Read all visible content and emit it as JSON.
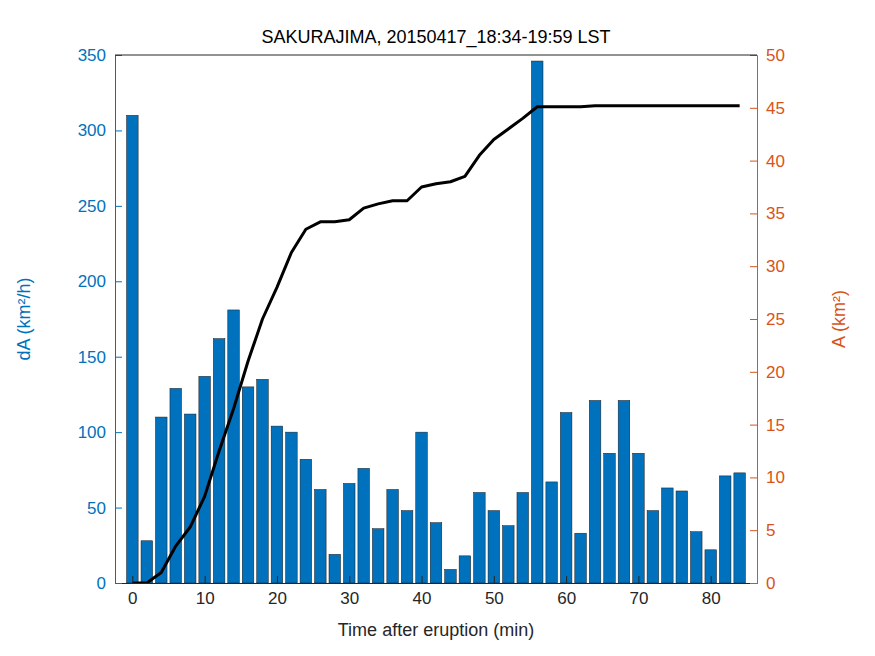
{
  "chart_data": {
    "type": "bar",
    "title": "SAKURAJIMA, 20150417_18:34-19:59 LST",
    "xlabel": "Time after eruption (min)",
    "ylabel": "dA (km²/h)",
    "y2label": "A (km²)",
    "x": [
      0,
      2,
      4,
      6,
      8,
      10,
      12,
      14,
      16,
      18,
      20,
      22,
      24,
      26,
      28,
      30,
      32,
      34,
      36,
      38,
      40,
      42,
      44,
      46,
      48,
      50,
      52,
      54,
      56,
      58,
      60,
      62,
      64,
      66,
      68,
      70,
      72,
      74,
      76,
      78,
      80,
      82,
      84
    ],
    "series": [
      {
        "type": "bar",
        "color": "#0072bd",
        "values": [
          310,
          28,
          110,
          129,
          112,
          137,
          162,
          181,
          130,
          135,
          104,
          100,
          82,
          62,
          19,
          66,
          76,
          36,
          62,
          48,
          100,
          40,
          9,
          18,
          60,
          48,
          38,
          60,
          346,
          67,
          113,
          33,
          121,
          86,
          121,
          86,
          48,
          63,
          61,
          34,
          22,
          71,
          73
        ]
      },
      {
        "type": "line",
        "color": "#000000",
        "axis": "y2",
        "values": [
          0,
          0,
          1,
          3.5,
          5.3,
          8.2,
          12.5,
          16.5,
          21,
          25,
          28,
          31.3,
          33.5,
          34.2,
          34.2,
          34.4,
          35.5,
          35.9,
          36.2,
          36.2,
          37.5,
          37.8,
          38,
          38.5,
          40.5,
          42,
          43,
          44,
          45.1,
          45.1,
          45.1,
          45.1,
          45.2,
          45.2,
          45.2,
          45.2,
          45.2,
          45.2,
          45.2,
          45.2,
          45.2,
          45.2,
          45.2
        ]
      }
    ],
    "xlim": [
      -2.4,
      86.4
    ],
    "xticks": [
      0,
      10,
      20,
      30,
      40,
      50,
      60,
      70,
      80
    ],
    "ylim": [
      0,
      350
    ],
    "yticks": [
      0,
      50,
      100,
      150,
      200,
      250,
      300,
      350
    ],
    "y2lim": [
      0,
      50
    ],
    "y2ticks": [
      0,
      5,
      10,
      15,
      20,
      25,
      30,
      35,
      40,
      45,
      50
    ]
  }
}
